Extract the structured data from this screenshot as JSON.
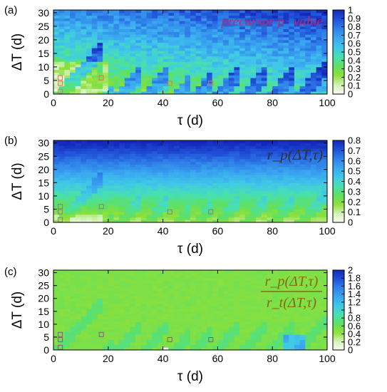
{
  "chart_data": [
    {
      "type": "heatmap",
      "panel_label": "(a)",
      "annotation": "precursor p−value",
      "annotation_color": "#cc2266",
      "xlabel": "τ (d)",
      "ylabel": "ΔT (d)",
      "xlim": [
        0,
        100
      ],
      "ylim": [
        0,
        31
      ],
      "xticks": [
        "0",
        "20",
        "40",
        "60",
        "80",
        "100"
      ],
      "yticks": [
        "0",
        "5",
        "10",
        "15",
        "20",
        "25",
        "30"
      ],
      "colorbar": {
        "range": [
          0,
          1
        ],
        "ticks": [
          "0",
          "0.1",
          "0.2",
          "0.3",
          "0.4",
          "0.5",
          "0.6",
          "0.7",
          "0.8",
          "0.9",
          "1"
        ],
        "colors": [
          "#f4fbf0",
          "#c8f0a8",
          "#8fe03a",
          "#5fe060",
          "#48e0b0",
          "#40c8e8",
          "#3aa8f0",
          "#2f80e8",
          "#2050d8",
          "#1428b8"
        ]
      },
      "markers": [
        [
          2.5,
          1
        ],
        [
          2.5,
          4
        ],
        [
          2.5,
          6
        ],
        [
          17.5,
          6
        ],
        [
          42.5,
          4
        ],
        [
          57.5,
          4
        ]
      ],
      "marker_color": "#e07060",
      "grid": false
    },
    {
      "type": "heatmap",
      "panel_label": "(b)",
      "annotation": "r_p(ΔT,τ)",
      "annotation_color": "#333333",
      "xlabel": "τ (d)",
      "ylabel": "ΔT (d)",
      "xlim": [
        0,
        100
      ],
      "ylim": [
        0,
        31
      ],
      "xticks": [
        "0",
        "20",
        "40",
        "60",
        "80",
        "100"
      ],
      "yticks": [
        "0",
        "5",
        "10",
        "15",
        "20",
        "25",
        "30"
      ],
      "colorbar": {
        "range": [
          0,
          0.8
        ],
        "ticks": [
          "0",
          "0.1",
          "0.2",
          "0.3",
          "0.4",
          "0.5",
          "0.6",
          "0.7",
          "0.8"
        ],
        "colors": [
          "#f4fbf0",
          "#c8f0a8",
          "#8fe03a",
          "#5fe060",
          "#48e0b0",
          "#40c8e8",
          "#3aa8f0",
          "#2f80e8",
          "#2050d8",
          "#1428b8"
        ]
      },
      "markers": [
        [
          2.5,
          1
        ],
        [
          2.5,
          4
        ],
        [
          2.5,
          6
        ],
        [
          17.5,
          6
        ],
        [
          42.5,
          4
        ],
        [
          57.5,
          4
        ]
      ],
      "marker_color": "#808080",
      "grid": false
    },
    {
      "type": "heatmap",
      "panel_label": "(c)",
      "annotation_numerator": "r_p(ΔT,τ)",
      "annotation_denominator": "r_t(ΔT,τ)",
      "annotation_color": "#8a6a10",
      "xlabel": "τ (d)",
      "ylabel": "ΔT (d)",
      "xlim": [
        0,
        100
      ],
      "ylim": [
        0,
        31
      ],
      "xticks": [
        "0",
        "20",
        "40",
        "60",
        "80",
        "100"
      ],
      "yticks": [
        "0",
        "5",
        "10",
        "15",
        "20",
        "25",
        "30"
      ],
      "colorbar": {
        "range": [
          0,
          2
        ],
        "ticks": [
          "0",
          "0.2",
          "0.4",
          "0.6",
          "0.8",
          "1",
          "1.2",
          "1.4",
          "1.6",
          "1.8",
          "2"
        ],
        "colors": [
          "#f4fbf0",
          "#c8f0a8",
          "#8fe03a",
          "#5fe060",
          "#48e0b0",
          "#40c8e8",
          "#3aa8f0",
          "#2f80e8",
          "#2050d8",
          "#1428b8"
        ]
      },
      "markers": [
        [
          2.5,
          1
        ],
        [
          2.5,
          4
        ],
        [
          2.5,
          6
        ],
        [
          17.5,
          6
        ],
        [
          42.5,
          4
        ],
        [
          57.5,
          4
        ]
      ],
      "marker_color": "#9a5080",
      "grid": false
    }
  ]
}
